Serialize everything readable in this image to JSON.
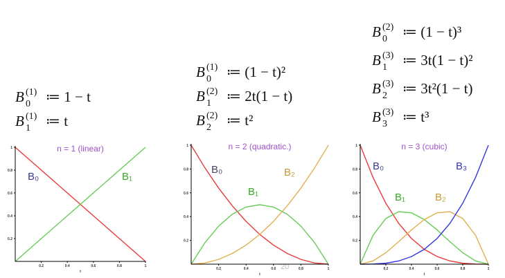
{
  "chart_data": [
    {
      "type": "line",
      "title": "n = 1 (linear)",
      "x_label": "t",
      "formulas": [
        {
          "symbol": "B",
          "sub": "0",
          "sup": "(1)",
          "rhs": "≔ 1 − t"
        },
        {
          "symbol": "B",
          "sub": "1",
          "sup": "(1)",
          "rhs": "≔ t"
        }
      ],
      "x": [
        0,
        0.1,
        0.2,
        0.3,
        0.4,
        0.5,
        0.6,
        0.7,
        0.8,
        0.9,
        1
      ],
      "xlim": [
        0,
        1
      ],
      "ylim": [
        0,
        1
      ],
      "xticks": [
        0.2,
        0.4,
        0.6,
        0.8,
        1
      ],
      "yticks": [
        0.2,
        0.4,
        0.6,
        0.8,
        1
      ],
      "series": [
        {
          "name": "B₀",
          "color": "#e83a3a",
          "label_color": "#3a3a90",
          "values": [
            1,
            0.9,
            0.8,
            0.7,
            0.6,
            0.5,
            0.4,
            0.3,
            0.2,
            0.1,
            0
          ]
        },
        {
          "name": "B₁",
          "color": "#66cc55",
          "label_color": "#33aa22",
          "values": [
            0,
            0.1,
            0.2,
            0.3,
            0.4,
            0.5,
            0.6,
            0.7,
            0.8,
            0.9,
            1
          ]
        }
      ]
    },
    {
      "type": "line",
      "title": "n = 2 (quadratic.)",
      "x_label": "t",
      "formulas": [
        {
          "symbol": "B",
          "sub": "0",
          "sup": "(1)",
          "rhs": "≔ (1 − t)²"
        },
        {
          "symbol": "B",
          "sub": "1",
          "sup": "(2)",
          "rhs": "≔ 2t(1 − t)"
        },
        {
          "symbol": "B",
          "sub": "2",
          "sup": "(2)",
          "rhs": "≔ t²"
        }
      ],
      "x": [
        0,
        0.1,
        0.2,
        0.3,
        0.4,
        0.5,
        0.6,
        0.7,
        0.8,
        0.9,
        1
      ],
      "xlim": [
        0,
        1
      ],
      "ylim": [
        0,
        1
      ],
      "xticks": [
        0.2,
        0.4,
        0.6,
        0.8,
        1
      ],
      "yticks": [
        0.2,
        0.4,
        0.6,
        0.8,
        1
      ],
      "series": [
        {
          "name": "B₀",
          "color": "#e83a3a",
          "label_color": "#444466",
          "values": [
            1,
            0.81,
            0.64,
            0.49,
            0.36,
            0.25,
            0.16,
            0.09,
            0.04,
            0.01,
            0
          ]
        },
        {
          "name": "B₁",
          "color": "#66cc55",
          "label_color": "#33aa22",
          "values": [
            0,
            0.18,
            0.32,
            0.42,
            0.48,
            0.5,
            0.48,
            0.42,
            0.32,
            0.18,
            0
          ]
        },
        {
          "name": "B₂",
          "color": "#e0b050",
          "label_color": "#c89a30",
          "values": [
            0,
            0.01,
            0.04,
            0.09,
            0.16,
            0.25,
            0.36,
            0.49,
            0.64,
            0.81,
            1
          ]
        }
      ]
    },
    {
      "type": "line",
      "title": "n = 3 (cubic)",
      "x_label": "t",
      "formulas": [
        {
          "symbol": "B",
          "sub": "0",
          "sup": "(2)",
          "rhs": "≔ (1 − t)³"
        },
        {
          "symbol": "B",
          "sub": "1",
          "sup": "(3)",
          "rhs": "≔ 3t(1 − t)²"
        },
        {
          "symbol": "B",
          "sub": "2",
          "sup": "(3)",
          "rhs": "≔ 3t²(1 − t)"
        },
        {
          "symbol": "B",
          "sub": "3",
          "sup": "(3)",
          "rhs": "≔ t³"
        }
      ],
      "x": [
        0,
        0.1,
        0.2,
        0.3,
        0.4,
        0.5,
        0.6,
        0.7,
        0.8,
        0.9,
        1
      ],
      "xlim": [
        0,
        1
      ],
      "ylim": [
        0,
        1
      ],
      "xticks": [
        0.2,
        0.4,
        0.6,
        0.8,
        1
      ],
      "yticks": [
        0.2,
        0.4,
        0.6,
        0.8,
        1
      ],
      "series": [
        {
          "name": "B₀",
          "color": "#e83a3a",
          "label_color": "#3a3a90",
          "values": [
            1,
            0.729,
            0.512,
            0.343,
            0.216,
            0.125,
            0.064,
            0.027,
            0.008,
            0.001,
            0
          ]
        },
        {
          "name": "B₁",
          "color": "#66cc55",
          "label_color": "#33aa22",
          "values": [
            0,
            0.243,
            0.384,
            0.441,
            0.432,
            0.375,
            0.288,
            0.189,
            0.096,
            0.027,
            0
          ]
        },
        {
          "name": "B₂",
          "color": "#e0b050",
          "label_color": "#c89a30",
          "values": [
            0,
            0.027,
            0.096,
            0.189,
            0.288,
            0.375,
            0.432,
            0.441,
            0.384,
            0.243,
            0
          ]
        },
        {
          "name": "B₃",
          "color": "#3535e0",
          "label_color": "#3535c0",
          "values": [
            0,
            0.001,
            0.008,
            0.027,
            0.064,
            0.125,
            0.216,
            0.343,
            0.512,
            0.729,
            1
          ]
        }
      ]
    }
  ],
  "page_number": "20"
}
